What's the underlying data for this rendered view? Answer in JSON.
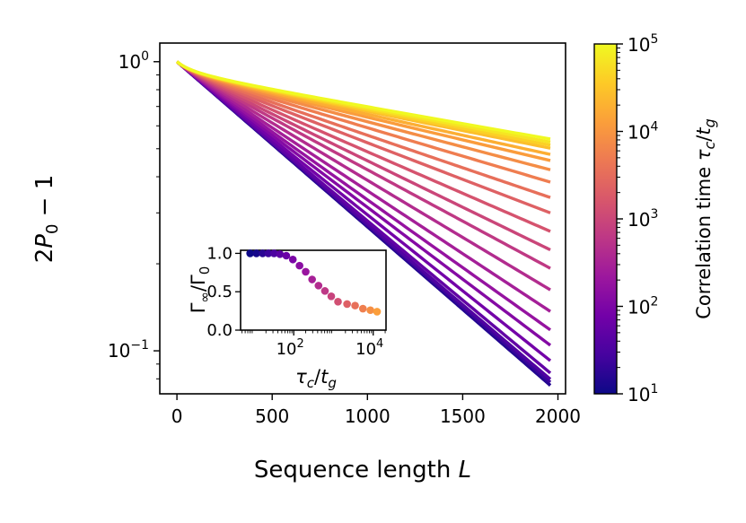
{
  "chart_data": [
    {
      "type": "line",
      "title": "",
      "xlabel": "Sequence length L",
      "ylabel": "2P0 − 1",
      "xlabel_parts": {
        "text": "Sequence length ",
        "var": "L"
      },
      "ylabel_parts": {
        "lead": "2",
        "var": "P",
        "sub": "0",
        "tail": " − 1"
      },
      "xscale": "linear",
      "yscale": "log",
      "xlim": [
        -90,
        2040
      ],
      "ylim": [
        0.071,
        1.16
      ],
      "xticks": [
        0,
        500,
        1000,
        1500,
        2000
      ],
      "xtick_labels": [
        "0",
        "500",
        "1000",
        "1500",
        "2000"
      ],
      "yticks": [
        {
          "value": 1.0,
          "base": "10",
          "exp": "0"
        },
        {
          "value": 0.1,
          "base": "10",
          "exp": "−1"
        }
      ],
      "x_range": [
        0,
        1960
      ],
      "model": "y = exp(-L * Gamma(tau)), Gamma = Gamma0 * (r_inf + (1 - r_inf) * 100 / (100 + L))",
      "gamma0": 0.001315,
      "series": [
        {
          "tau": 10,
          "r_inf": 1.0,
          "y_at_1960": 0.0797
        },
        {
          "tau": 15,
          "r_inf": 1.0,
          "y_at_1960": 0.081
        },
        {
          "tau": 23,
          "r_inf": 0.99,
          "y_at_1960": 0.084
        },
        {
          "tau": 35,
          "r_inf": 0.98,
          "y_at_1960": 0.087
        },
        {
          "tau": 53,
          "r_inf": 0.96,
          "y_at_1960": 0.091
        },
        {
          "tau": 80,
          "r_inf": 0.92,
          "y_at_1960": 0.097
        },
        {
          "tau": 120,
          "r_inf": 0.87,
          "y_at_1960": 0.106
        },
        {
          "tau": 180,
          "r_inf": 0.82,
          "y_at_1960": 0.115
        },
        {
          "tau": 275,
          "r_inf": 0.76,
          "y_at_1960": 0.128
        },
        {
          "tau": 420,
          "r_inf": 0.69,
          "y_at_1960": 0.145
        },
        {
          "tau": 640,
          "r_inf": 0.62,
          "y_at_1960": 0.164
        },
        {
          "tau": 970,
          "r_inf": 0.56,
          "y_at_1960": 0.185
        },
        {
          "tau": 1480,
          "r_inf": 0.5,
          "y_at_1960": 0.208
        },
        {
          "tau": 2250,
          "r_inf": 0.44,
          "y_at_1960": 0.234
        },
        {
          "tau": 3420,
          "r_inf": 0.39,
          "y_at_1960": 0.26
        },
        {
          "tau": 5200,
          "r_inf": 0.34,
          "y_at_1960": 0.288
        },
        {
          "tau": 7900,
          "r_inf": 0.3,
          "y_at_1960": 0.312
        },
        {
          "tau": 12000,
          "r_inf": 0.27,
          "y_at_1960": 0.332
        },
        {
          "tau": 18300,
          "r_inf": 0.25,
          "y_at_1960": 0.348
        },
        {
          "tau": 27800,
          "r_inf": 0.23,
          "y_at_1960": 0.362
        },
        {
          "tau": 42300,
          "r_inf": 0.22,
          "y_at_1960": 0.372
        },
        {
          "tau": 64300,
          "r_inf": 0.21,
          "y_at_1960": 0.38
        },
        {
          "tau": 100000,
          "r_inf": 0.2,
          "y_at_1960": 0.388
        }
      ]
    },
    {
      "type": "scatter",
      "title": "",
      "xlabel": "τc/tg",
      "ylabel": "Γ∞/Γ0",
      "xlabel_parts": {
        "var": "τ",
        "sub1": "c",
        "slash": "/",
        "var2": "t",
        "sub2": "g"
      },
      "ylabel_parts": {
        "var": "Γ",
        "sub1": "∞",
        "slash": "/",
        "var2": "Γ",
        "sub2": "0"
      },
      "xscale": "log",
      "yscale": "linear",
      "xlim": [
        4.6,
        21000
      ],
      "ylim": [
        0.0,
        1.04
      ],
      "xticks": [
        {
          "value": 100,
          "base": "10",
          "exp": "2"
        },
        {
          "value": 10000,
          "base": "10",
          "exp": "4"
        }
      ],
      "yticks": [
        0.0,
        0.5,
        1.0
      ],
      "ytick_labels": [
        "0.0",
        "0.5",
        "1.0"
      ],
      "points": [
        {
          "x": 8.0,
          "y": 1.0
        },
        {
          "x": 11.5,
          "y": 1.0
        },
        {
          "x": 16.5,
          "y": 1.0
        },
        {
          "x": 23.0,
          "y": 1.0
        },
        {
          "x": 32.0,
          "y": 1.0
        },
        {
          "x": 45.0,
          "y": 0.99
        },
        {
          "x": 65.0,
          "y": 0.97
        },
        {
          "x": 95.0,
          "y": 0.92
        },
        {
          "x": 140.0,
          "y": 0.84
        },
        {
          "x": 200.0,
          "y": 0.76
        },
        {
          "x": 290.0,
          "y": 0.66
        },
        {
          "x": 420.0,
          "y": 0.58
        },
        {
          "x": 610.0,
          "y": 0.51
        },
        {
          "x": 880.0,
          "y": 0.44
        },
        {
          "x": 1300.0,
          "y": 0.37
        },
        {
          "x": 2200.0,
          "y": 0.34
        },
        {
          "x": 3500.0,
          "y": 0.32
        },
        {
          "x": 5500.0,
          "y": 0.28
        },
        {
          "x": 8500.0,
          "y": 0.26
        },
        {
          "x": 12500.0,
          "y": 0.24
        }
      ]
    },
    {
      "type": "colorbar",
      "label": "Correlation time τc/tg",
      "label_parts": {
        "text": "Correlation time ",
        "var": "τ",
        "sub1": "c",
        "slash": "/",
        "var2": "t",
        "sub2": "g"
      },
      "scale": "log",
      "range": [
        10,
        100000
      ],
      "colormap": "plasma",
      "colormap_stops": [
        "#0d0887",
        "#46039f",
        "#7201a8",
        "#9c179e",
        "#bd3786",
        "#d8576b",
        "#ed7953",
        "#fb9f3a",
        "#fdca26",
        "#f0f921"
      ],
      "ticks": [
        {
          "value": 10,
          "base": "10",
          "exp": "1"
        },
        {
          "value": 100,
          "base": "10",
          "exp": "2"
        },
        {
          "value": 1000,
          "base": "10",
          "exp": "3"
        },
        {
          "value": 10000,
          "base": "10",
          "exp": "4"
        },
        {
          "value": 100000,
          "base": "10",
          "exp": "5"
        }
      ]
    }
  ]
}
